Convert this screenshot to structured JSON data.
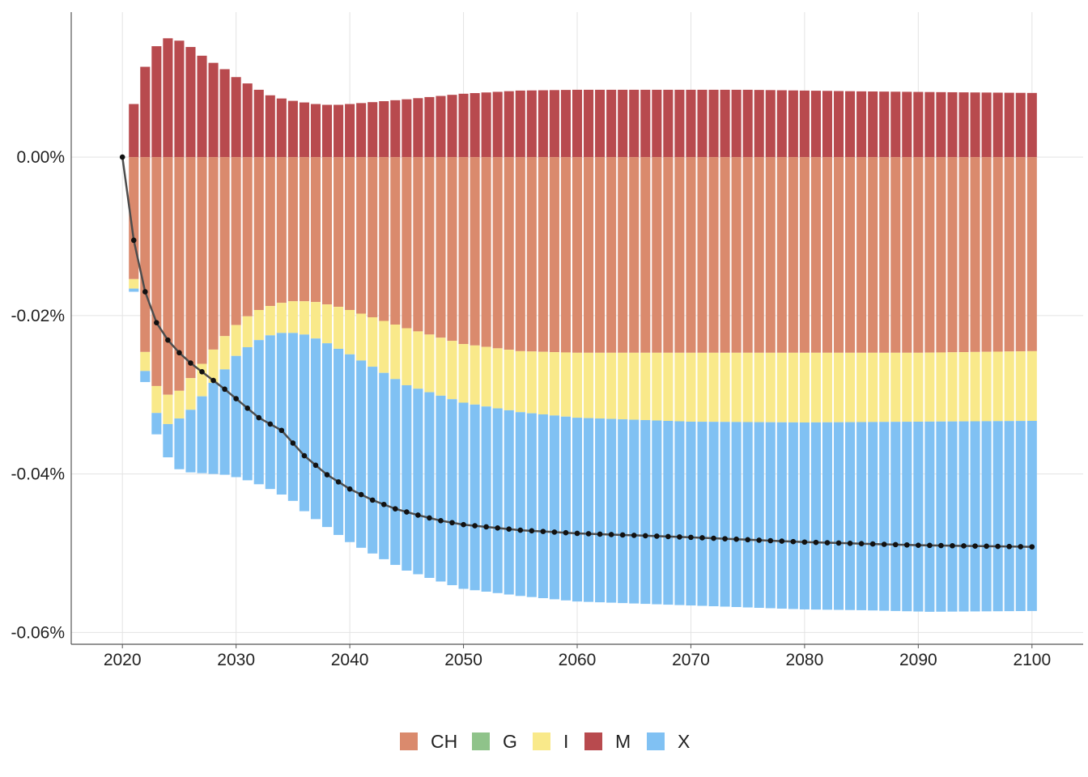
{
  "chart_data": {
    "type": "bar",
    "stacked": true,
    "x_start": 2020,
    "x_end": 2100,
    "xlim": [
      2015.5,
      2104.5
    ],
    "ylim": [
      -0.0615,
      0.0183
    ],
    "grid": true,
    "legend_position": "bottom-center",
    "xticks": [
      2020,
      2030,
      2040,
      2050,
      2060,
      2070,
      2080,
      2090,
      2100
    ],
    "xtick_labels": [
      "2020",
      "2030",
      "2040",
      "2050",
      "2060",
      "2070",
      "2080",
      "2090",
      "2100"
    ],
    "yticks": [
      0.0,
      -0.02,
      -0.04,
      -0.06
    ],
    "ytick_labels": [
      "0.00%",
      "-0.02%",
      "-0.04%",
      "-0.06%"
    ],
    "legend": [
      {
        "key": "CH",
        "label": "CH",
        "color": "#DA8A6D"
      },
      {
        "key": "G",
        "label": "G",
        "color": "#8FC38A"
      },
      {
        "key": "I",
        "label": "I",
        "color": "#F9E98A"
      },
      {
        "key": "M",
        "label": "M",
        "color": "#B84A4E"
      },
      {
        "key": "X",
        "label": "X",
        "color": "#80C1F3"
      }
    ],
    "line_series": {
      "color": "#4d4d4d",
      "marker_color": "#111111",
      "anchors": [
        [
          2020,
          0.0
        ],
        [
          2021,
          -0.0105
        ],
        [
          2022,
          -0.017
        ],
        [
          2023,
          -0.0209
        ],
        [
          2024,
          -0.0231
        ],
        [
          2025,
          -0.0247
        ],
        [
          2026,
          -0.026
        ],
        [
          2027,
          -0.0271
        ],
        [
          2028,
          -0.0282
        ],
        [
          2029,
          -0.0293
        ],
        [
          2030,
          -0.0305
        ],
        [
          2032,
          -0.0329
        ],
        [
          2034,
          -0.0345
        ],
        [
          2036,
          -0.0377
        ],
        [
          2038,
          -0.0401
        ],
        [
          2040,
          -0.0419
        ],
        [
          2042,
          -0.0433
        ],
        [
          2044,
          -0.0444
        ],
        [
          2046,
          -0.0452
        ],
        [
          2048,
          -0.0459
        ],
        [
          2050,
          -0.0464
        ],
        [
          2055,
          -0.0471
        ],
        [
          2060,
          -0.0475
        ],
        [
          2070,
          -0.048
        ],
        [
          2080,
          -0.0486
        ],
        [
          2090,
          -0.049
        ],
        [
          2100,
          -0.0492
        ]
      ]
    },
    "stack_series": {
      "M_pos": [
        [
          2021,
          0.0067
        ],
        [
          2022,
          0.0114
        ],
        [
          2023,
          0.014
        ],
        [
          2024,
          0.015
        ],
        [
          2025,
          0.0147
        ],
        [
          2026,
          0.0139
        ],
        [
          2027,
          0.0128
        ],
        [
          2028,
          0.0119
        ],
        [
          2029,
          0.0111
        ],
        [
          2030,
          0.0101
        ],
        [
          2031,
          0.0093
        ],
        [
          2032,
          0.0085
        ],
        [
          2033,
          0.0078
        ],
        [
          2034,
          0.0074
        ],
        [
          2035,
          0.0071
        ],
        [
          2036,
          0.0069
        ],
        [
          2037,
          0.0067
        ],
        [
          2038,
          0.0066
        ],
        [
          2039,
          0.0066
        ],
        [
          2040,
          0.0067
        ],
        [
          2045,
          0.0073
        ],
        [
          2050,
          0.008
        ],
        [
          2055,
          0.0084
        ],
        [
          2060,
          0.0085
        ],
        [
          2068,
          0.0085
        ],
        [
          2075,
          0.0085
        ],
        [
          2085,
          0.0083
        ],
        [
          2092,
          0.0082
        ],
        [
          2100,
          0.0081
        ]
      ],
      "CH_bottom": [
        [
          2021,
          -0.0154
        ],
        [
          2022,
          -0.0246
        ],
        [
          2023,
          -0.0289
        ],
        [
          2024,
          -0.03
        ],
        [
          2025,
          -0.0295
        ],
        [
          2026,
          -0.0279
        ],
        [
          2027,
          -0.0261
        ],
        [
          2028,
          -0.0243
        ],
        [
          2029,
          -0.0226
        ],
        [
          2030,
          -0.0212
        ],
        [
          2031,
          -0.0201
        ],
        [
          2032,
          -0.0193
        ],
        [
          2033,
          -0.0188
        ],
        [
          2034,
          -0.0184
        ],
        [
          2035,
          -0.0182
        ],
        [
          2036,
          -0.0182
        ],
        [
          2037,
          -0.0183
        ],
        [
          2038,
          -0.0186
        ],
        [
          2039,
          -0.0189
        ],
        [
          2040,
          -0.0193
        ],
        [
          2045,
          -0.0216
        ],
        [
          2050,
          -0.0236
        ],
        [
          2055,
          -0.0245
        ],
        [
          2060,
          -0.0247
        ],
        [
          2070,
          -0.0247
        ],
        [
          2080,
          -0.0247
        ],
        [
          2090,
          -0.0247
        ],
        [
          2100,
          -0.0245
        ]
      ],
      "I_bottom": [
        [
          2021,
          -0.0166
        ],
        [
          2022,
          -0.027
        ],
        [
          2023,
          -0.0323
        ],
        [
          2024,
          -0.0337
        ],
        [
          2025,
          -0.033
        ],
        [
          2026,
          -0.0319
        ],
        [
          2027,
          -0.0302
        ],
        [
          2028,
          -0.0285
        ],
        [
          2029,
          -0.0268
        ],
        [
          2030,
          -0.0251
        ],
        [
          2031,
          -0.024
        ],
        [
          2032,
          -0.0231
        ],
        [
          2033,
          -0.0225
        ],
        [
          2034,
          -0.0222
        ],
        [
          2035,
          -0.0222
        ],
        [
          2036,
          -0.0224
        ],
        [
          2037,
          -0.0229
        ],
        [
          2038,
          -0.0235
        ],
        [
          2039,
          -0.0242
        ],
        [
          2040,
          -0.0249
        ],
        [
          2045,
          -0.0288
        ],
        [
          2050,
          -0.031
        ],
        [
          2055,
          -0.0322
        ],
        [
          2060,
          -0.0329
        ],
        [
          2070,
          -0.0334
        ],
        [
          2080,
          -0.0335
        ],
        [
          2090,
          -0.0334
        ],
        [
          2100,
          -0.0333
        ]
      ],
      "X_bottom": [
        [
          2021,
          -0.017
        ],
        [
          2022,
          -0.0284
        ],
        [
          2023,
          -0.035
        ],
        [
          2024,
          -0.0379
        ],
        [
          2025,
          -0.0394
        ],
        [
          2026,
          -0.0398
        ],
        [
          2027,
          -0.0399
        ],
        [
          2028,
          -0.04
        ],
        [
          2029,
          -0.0401
        ],
        [
          2030,
          -0.0404
        ],
        [
          2031,
          -0.0408
        ],
        [
          2032,
          -0.0413
        ],
        [
          2033,
          -0.0419
        ],
        [
          2034,
          -0.0426
        ],
        [
          2035,
          -0.0434
        ],
        [
          2036,
          -0.0447
        ],
        [
          2037,
          -0.0457
        ],
        [
          2038,
          -0.0467
        ],
        [
          2039,
          -0.0477
        ],
        [
          2040,
          -0.0486
        ],
        [
          2045,
          -0.0522
        ],
        [
          2050,
          -0.0545
        ],
        [
          2055,
          -0.0554
        ],
        [
          2060,
          -0.0561
        ],
        [
          2070,
          -0.0566
        ],
        [
          2080,
          -0.0571
        ],
        [
          2085,
          -0.0572
        ],
        [
          2091,
          -0.0574
        ],
        [
          2100,
          -0.0573
        ]
      ]
    }
  }
}
